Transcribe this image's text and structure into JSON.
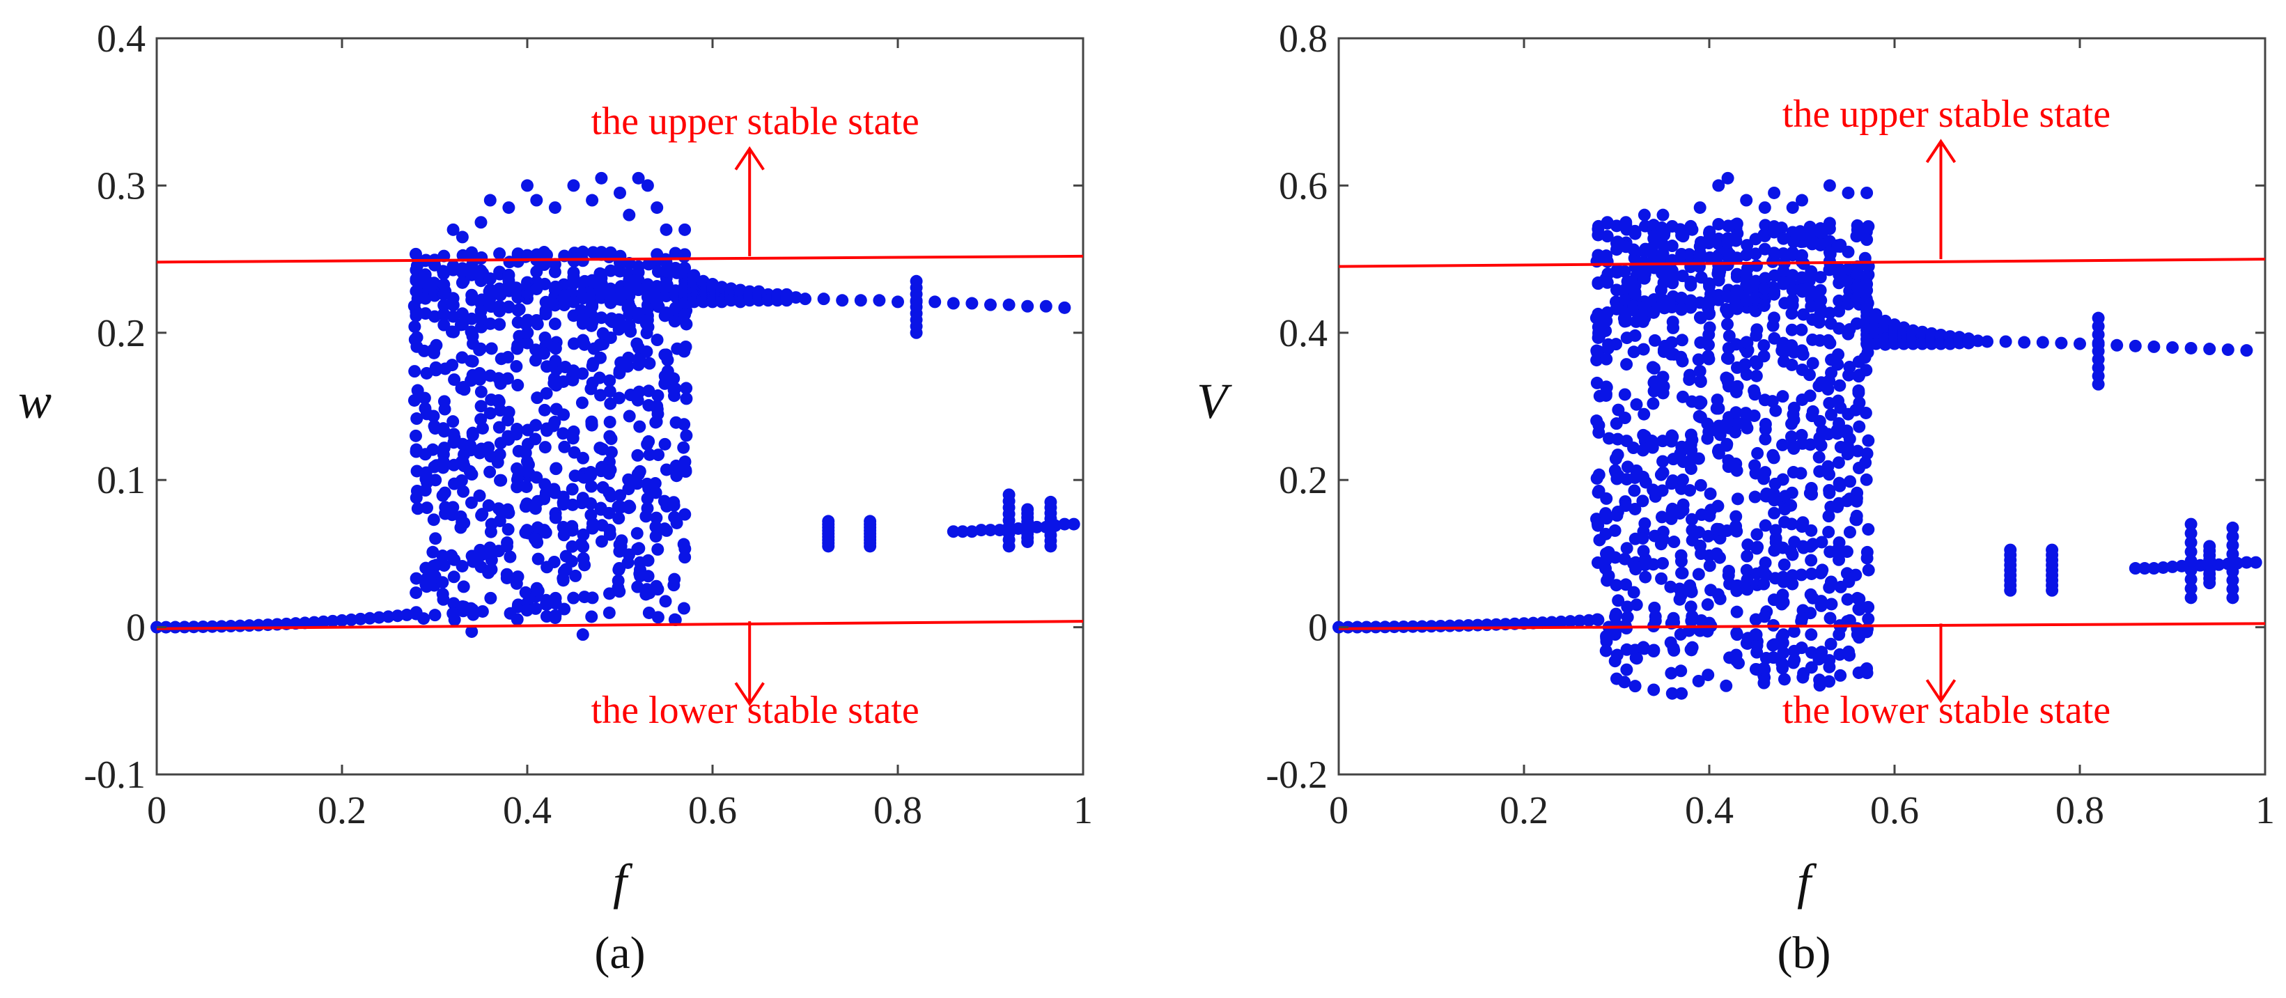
{
  "figure": {
    "colors": {
      "data": "#0a14e6",
      "threshold": "#ff0000",
      "axis": "#444444"
    }
  },
  "chart_data": [
    {
      "type": "scatter",
      "panel_label": "(a)",
      "xlabel": "f",
      "ylabel": "w",
      "xlim": [
        0,
        1
      ],
      "ylim": [
        -0.1,
        0.4
      ],
      "xticks": [
        0,
        0.2,
        0.4,
        0.6,
        0.8,
        1
      ],
      "xtick_labels": [
        "0",
        "0.2",
        "0.4",
        "0.6",
        "0.8",
        "1"
      ],
      "yticks": [
        -0.1,
        0,
        0.1,
        0.2,
        0.3,
        0.4
      ],
      "ytick_labels": [
        "-0.1",
        "0",
        "0.1",
        "0.2",
        "0.3",
        "0.4"
      ],
      "upper_line": {
        "x": [
          0,
          1
        ],
        "y": [
          0.248,
          0.252
        ]
      },
      "lower_line": {
        "x": [
          0,
          1
        ],
        "y": [
          -0.001,
          0.004
        ]
      },
      "annotations": {
        "upper": {
          "text": "the upper stable state",
          "x": 0.64,
          "y_text": 0.335,
          "arrow_from": 0.252,
          "arrow_to": 0.325
        },
        "lower": {
          "text": "the lower stable state",
          "x": 0.64,
          "y_text": -0.065,
          "arrow_from": 0.004,
          "arrow_to": -0.052
        }
      },
      "series": {
        "rest_branch": {
          "x_start": 0,
          "x_end": 0.28,
          "y_start": 0,
          "y_end": 0.009,
          "step": 0.01
        },
        "chaotic_band": {
          "x_range": [
            0.28,
            0.57
          ],
          "y_range": [
            0.005,
            0.255
          ],
          "step": 0.01,
          "density_rows": 26
        },
        "outliers": [
          [
            0.34,
            -0.003
          ],
          [
            0.36,
            0.29
          ],
          [
            0.38,
            0.285
          ],
          [
            0.4,
            0.3
          ],
          [
            0.41,
            0.29
          ],
          [
            0.43,
            0.285
          ],
          [
            0.45,
            0.3
          ],
          [
            0.46,
            -0.005
          ],
          [
            0.47,
            0.29
          ],
          [
            0.48,
            0.305
          ],
          [
            0.5,
            0.295
          ],
          [
            0.51,
            0.28
          ],
          [
            0.52,
            0.305
          ],
          [
            0.53,
            0.3
          ],
          [
            0.54,
            0.285
          ],
          [
            0.55,
            0.27
          ],
          [
            0.56,
            0.005
          ],
          [
            0.57,
            0.27
          ],
          [
            0.32,
            0.27
          ],
          [
            0.33,
            0.265
          ],
          [
            0.35,
            0.275
          ]
        ],
        "upper_tail": {
          "x": [
            0.57,
            0.58,
            0.59,
            0.6,
            0.61,
            0.62,
            0.63,
            0.64,
            0.65,
            0.66,
            0.67,
            0.68,
            0.69,
            0.7,
            0.72,
            0.74,
            0.76,
            0.78,
            0.8,
            0.82,
            0.84,
            0.86,
            0.88,
            0.9,
            0.92,
            0.94,
            0.96,
            0.98
          ],
          "y": [
            0.232,
            0.23,
            0.228,
            0.227,
            0.226,
            0.226,
            0.225,
            0.225,
            0.225,
            0.224,
            0.224,
            0.224,
            0.224,
            0.223,
            0.223,
            0.222,
            0.222,
            0.222,
            0.221,
            0.221,
            0.221,
            0.22,
            0.22,
            0.219,
            0.219,
            0.218,
            0.218,
            0.217
          ],
          "spread": [
            0.012,
            0.009,
            0.007,
            0.006,
            0.005,
            0.004,
            0.004,
            0.003,
            0.003,
            0.002,
            0.002,
            0.002,
            0.0,
            0.0,
            0.0,
            0.0,
            0.0,
            0.0,
            0.0,
            0.0,
            0.0,
            0.0,
            0.0,
            0.0,
            0.0,
            0.0,
            0.0,
            0.0
          ]
        },
        "vertical_clusters": [
          {
            "x": 0.82,
            "y_min": 0.2,
            "y_max": 0.235
          },
          {
            "x": 0.725,
            "y_min": 0.055,
            "y_max": 0.072
          },
          {
            "x": 0.77,
            "y_min": 0.055,
            "y_max": 0.072
          },
          {
            "x": 0.92,
            "y_min": 0.055,
            "y_max": 0.09
          },
          {
            "x": 0.94,
            "y_min": 0.058,
            "y_max": 0.08
          },
          {
            "x": 0.965,
            "y_min": 0.055,
            "y_max": 0.085
          }
        ],
        "lower_tail": {
          "x": [
            0.86,
            0.87,
            0.88,
            0.89,
            0.9,
            0.91,
            0.93,
            0.95,
            0.96,
            0.97,
            0.98,
            0.99
          ],
          "y": [
            0.065,
            0.065,
            0.065,
            0.066,
            0.066,
            0.066,
            0.067,
            0.068,
            0.068,
            0.069,
            0.07,
            0.07
          ]
        }
      }
    },
    {
      "type": "scatter",
      "panel_label": "(b)",
      "xlabel": "f",
      "ylabel": "V",
      "xlim": [
        0,
        1
      ],
      "ylim": [
        -0.2,
        0.8
      ],
      "xticks": [
        0,
        0.2,
        0.4,
        0.6,
        0.8,
        1
      ],
      "xtick_labels": [
        "0",
        "0.2",
        "0.4",
        "0.6",
        "0.8",
        "1"
      ],
      "yticks": [
        -0.2,
        0,
        0.2,
        0.4,
        0.6,
        0.8
      ],
      "ytick_labels": [
        "-0.2",
        "0",
        "0.2",
        "0.4",
        "0.6",
        "0.8"
      ],
      "upper_line": {
        "x": [
          0,
          1
        ],
        "y": [
          0.49,
          0.5
        ]
      },
      "lower_line": {
        "x": [
          0,
          1
        ],
        "y": [
          -0.002,
          0.005
        ]
      },
      "annotations": {
        "upper": {
          "text": "the upper stable state",
          "x": 0.65,
          "y_text": 0.68,
          "arrow_from": 0.5,
          "arrow_to": 0.66
        },
        "lower": {
          "text": "the lower stable state",
          "x": 0.65,
          "y_text": -0.13,
          "arrow_from": 0.005,
          "arrow_to": -0.1
        }
      },
      "series": {
        "rest_branch": {
          "x_start": 0,
          "x_end": 0.28,
          "y_start": 0,
          "y_end": 0.01,
          "step": 0.01
        },
        "chaotic_band": {
          "x_range": [
            0.28,
            0.57
          ],
          "y_range": [
            -0.08,
            0.55
          ],
          "step": 0.01,
          "density_rows": 32
        },
        "outliers": [
          [
            0.3,
            -0.07
          ],
          [
            0.32,
            -0.08
          ],
          [
            0.34,
            -0.085
          ],
          [
            0.36,
            -0.09
          ],
          [
            0.37,
            -0.09
          ],
          [
            0.41,
            0.6
          ],
          [
            0.42,
            0.61
          ],
          [
            0.44,
            0.58
          ],
          [
            0.47,
            0.59
          ],
          [
            0.5,
            0.58
          ],
          [
            0.53,
            0.6
          ],
          [
            0.55,
            0.59
          ],
          [
            0.57,
            0.59
          ],
          [
            0.29,
            0.55
          ],
          [
            0.31,
            0.55
          ],
          [
            0.33,
            0.56
          ],
          [
            0.35,
            0.56
          ],
          [
            0.39,
            0.57
          ],
          [
            0.46,
            0.57
          ],
          [
            0.49,
            0.57
          ],
          [
            0.43,
            -0.01
          ],
          [
            0.45,
            -0.01
          ],
          [
            0.48,
            -0.01
          ],
          [
            0.51,
            -0.01
          ],
          [
            0.54,
            -0.01
          ],
          [
            0.56,
            -0.01
          ]
        ],
        "upper_tail": {
          "x": [
            0.57,
            0.58,
            0.59,
            0.6,
            0.61,
            0.62,
            0.63,
            0.64,
            0.65,
            0.66,
            0.67,
            0.68,
            0.69,
            0.7,
            0.72,
            0.74,
            0.76,
            0.78,
            0.8,
            0.82,
            0.84,
            0.86,
            0.88,
            0.9,
            0.92,
            0.94,
            0.96,
            0.98
          ],
          "y": [
            0.41,
            0.405,
            0.4,
            0.398,
            0.396,
            0.394,
            0.393,
            0.392,
            0.391,
            0.39,
            0.39,
            0.389,
            0.389,
            0.388,
            0.388,
            0.387,
            0.387,
            0.386,
            0.385,
            0.384,
            0.383,
            0.382,
            0.381,
            0.38,
            0.379,
            0.378,
            0.377,
            0.376
          ],
          "spread": [
            0.025,
            0.02,
            0.016,
            0.013,
            0.011,
            0.009,
            0.008,
            0.007,
            0.006,
            0.005,
            0.004,
            0.003,
            0.0,
            0.0,
            0.0,
            0.0,
            0.0,
            0.0,
            0.0,
            0.0,
            0.0,
            0.0,
            0.0,
            0.0,
            0.0,
            0.0,
            0.0,
            0.0
          ]
        },
        "vertical_clusters": [
          {
            "x": 0.82,
            "y_min": 0.33,
            "y_max": 0.42
          },
          {
            "x": 0.725,
            "y_min": 0.05,
            "y_max": 0.105
          },
          {
            "x": 0.77,
            "y_min": 0.05,
            "y_max": 0.105
          },
          {
            "x": 0.92,
            "y_min": 0.04,
            "y_max": 0.14
          },
          {
            "x": 0.94,
            "y_min": 0.06,
            "y_max": 0.11
          },
          {
            "x": 0.965,
            "y_min": 0.04,
            "y_max": 0.135
          }
        ],
        "lower_tail": {
          "x": [
            0.86,
            0.87,
            0.88,
            0.89,
            0.9,
            0.91,
            0.93,
            0.95,
            0.96,
            0.97,
            0.98,
            0.99
          ],
          "y": [
            0.08,
            0.08,
            0.08,
            0.081,
            0.082,
            0.083,
            0.084,
            0.085,
            0.086,
            0.087,
            0.088,
            0.088
          ]
        }
      }
    }
  ]
}
